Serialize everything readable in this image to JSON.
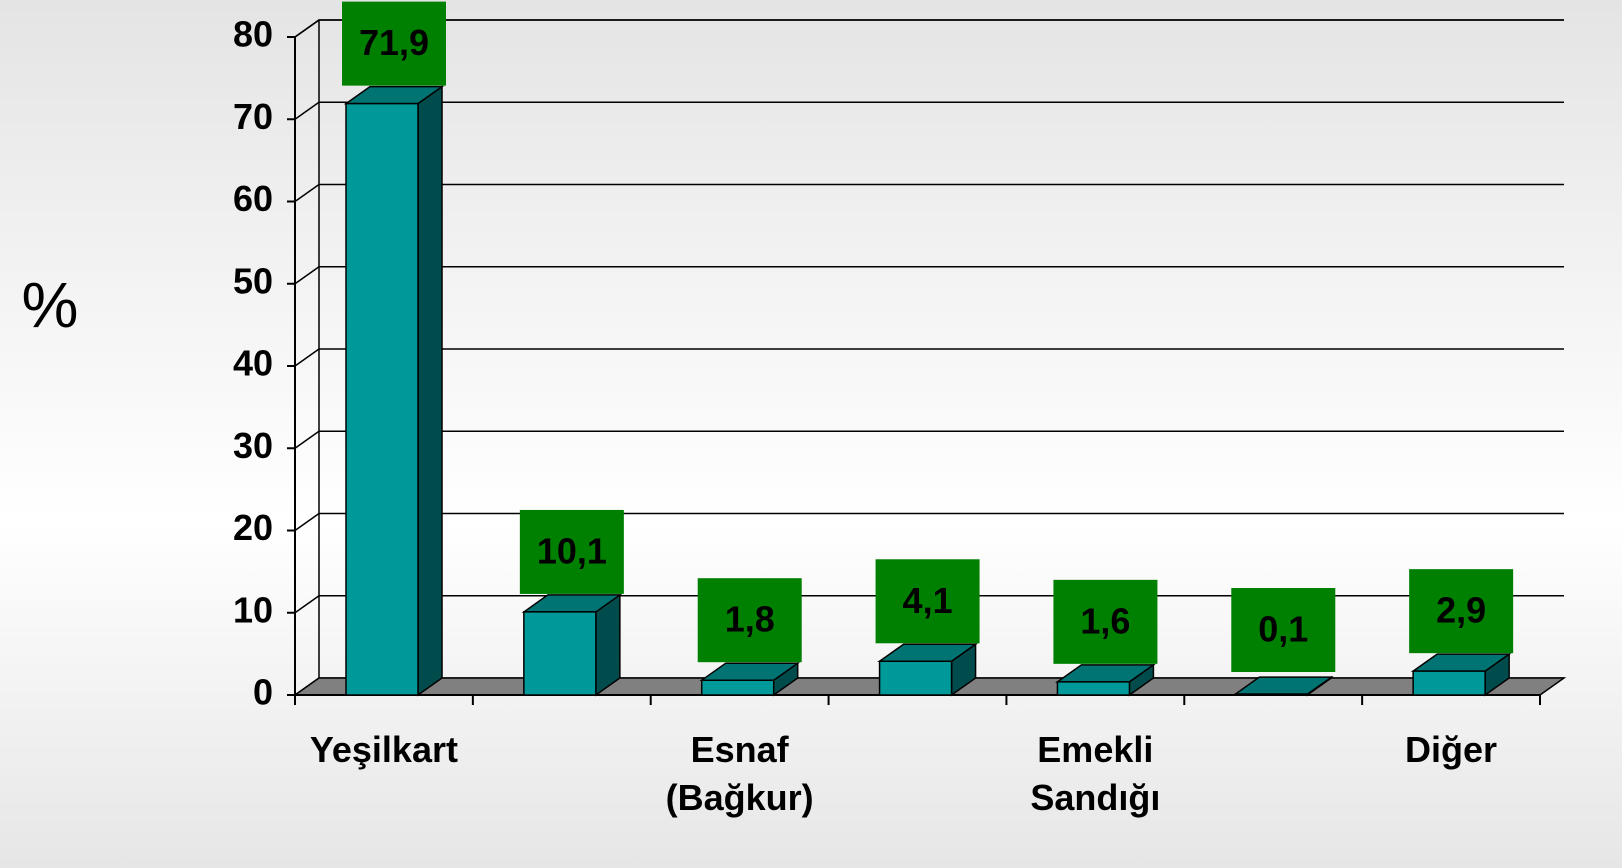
{
  "chart_data": {
    "type": "bar3d",
    "categories": [
      "Yeşilkart",
      null,
      "Esnaf (Bağkur)",
      null,
      "Emekli Sandığı",
      null,
      "Diğer"
    ],
    "values": [
      71.9,
      10.1,
      1.8,
      4.1,
      1.6,
      0.1,
      2.9
    ],
    "value_labels": [
      "71,9",
      "10,1",
      "1,8",
      "4,1",
      "1,6",
      "0,1",
      "2,9"
    ],
    "y_label": "%",
    "ylim": [
      0,
      80
    ],
    "yticks": [
      0,
      10,
      20,
      30,
      40,
      50,
      60,
      70,
      80
    ],
    "color": "#009999",
    "label_color": "#008000",
    "grid": true
  }
}
